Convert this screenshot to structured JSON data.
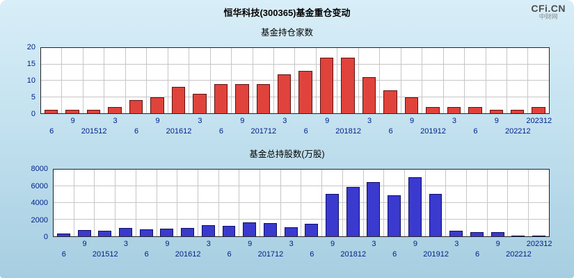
{
  "page": {
    "title": "恒华科技(300365)基金重仓变动",
    "logo": {
      "brand": "CFi.CN",
      "site": "中财网"
    }
  },
  "colors": {
    "background_top": "#d8eef8",
    "background_bottom": "#a6cee1",
    "plot_background": "#ffffff",
    "plot_border": "#222222",
    "grid": "#c6c6c6",
    "axis_text": "#00218c",
    "title_text": "#000000",
    "fund_count_bar": "#e0433b",
    "fund_count_bar_border": "#5c1210",
    "shares_bar": "#3a3ace",
    "shares_bar_border": "#0d0d66"
  },
  "chart_data": [
    {
      "type": "bar",
      "title": "基金持仓家数",
      "xlabel": "",
      "ylabel": "",
      "ylim": [
        0,
        20
      ],
      "yticks": [
        0,
        5,
        10,
        15,
        20
      ],
      "grid": true,
      "legend": "none",
      "bar_color": "#e0433b",
      "bar_border": "#5c1210",
      "categories": [
        "6",
        "9",
        "201512",
        "3",
        "6",
        "9",
        "201612",
        "3",
        "6",
        "9",
        "201712",
        "3",
        "6",
        "9",
        "201812",
        "3",
        "6",
        "9",
        "201912",
        "3",
        "6",
        "9",
        "202212",
        "202312"
      ],
      "values": [
        1,
        1,
        1,
        2,
        4,
        5,
        8,
        6,
        9,
        9,
        9,
        12,
        13,
        17,
        17,
        11,
        7,
        5,
        2,
        2,
        2,
        1,
        1,
        2
      ]
    },
    {
      "type": "bar",
      "title": "基金总持股数(万股)",
      "xlabel": "",
      "ylabel": "",
      "ylim": [
        0,
        8000
      ],
      "yticks": [
        0,
        2000,
        4000,
        6000,
        8000
      ],
      "grid": true,
      "legend": "none",
      "bar_color": "#3a3ace",
      "bar_border": "#0d0d66",
      "categories": [
        "6",
        "9",
        "201512",
        "3",
        "6",
        "9",
        "201612",
        "3",
        "6",
        "9",
        "201712",
        "3",
        "6",
        "9",
        "201812",
        "3",
        "6",
        "9",
        "201912",
        "3",
        "6",
        "9",
        "202212",
        "202312"
      ],
      "values": [
        350,
        750,
        650,
        1000,
        800,
        900,
        1000,
        1350,
        1250,
        1650,
        1550,
        1100,
        1500,
        5100,
        5900,
        6500,
        4950,
        7100,
        5050,
        700,
        500,
        500,
        60,
        80
      ]
    }
  ]
}
